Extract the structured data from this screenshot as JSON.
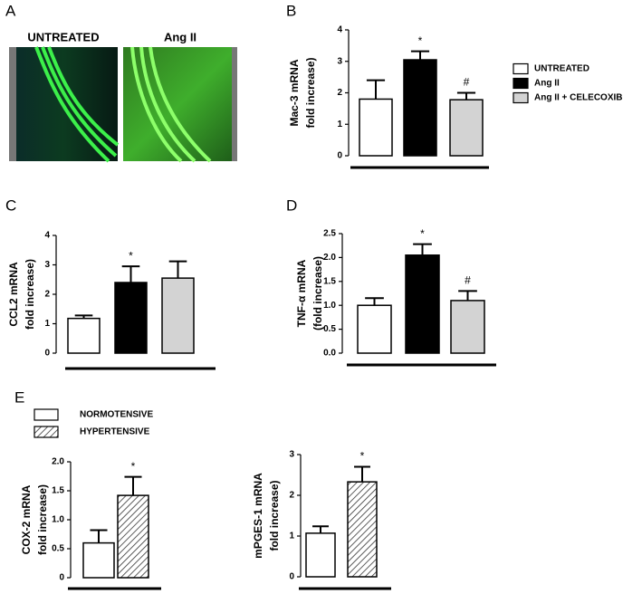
{
  "panels": [
    "A",
    "B",
    "C",
    "D",
    "E"
  ],
  "images": [
    {
      "label": "UNTREATED"
    },
    {
      "label": "Ang II"
    }
  ],
  "chart_data": [
    {
      "type": "bar",
      "y_label": [
        "Mac-3 mRNA",
        "fold increase)"
      ],
      "values": [
        1.8,
        3.05,
        1.78
      ],
      "errors": [
        0.6,
        0.27,
        0.22
      ],
      "colors": [
        "#ffffff",
        "#000000",
        "#d3d3d3"
      ],
      "hatched": [
        false,
        false,
        false
      ],
      "legend": [
        "UNTREATED",
        "Ang II",
        "Ang II + CELECOXIB"
      ],
      "markers": [
        null,
        "*",
        "#"
      ],
      "ylim": [
        0,
        4
      ],
      "yticks": [
        0,
        1,
        2,
        3,
        4
      ]
    },
    {
      "type": "bar",
      "y_label": [
        "CCL2 mRNA",
        "fold increase)"
      ],
      "values": [
        1.18,
        2.4,
        2.55
      ],
      "errors": [
        0.1,
        0.55,
        0.57
      ],
      "colors": [
        "#ffffff",
        "#000000",
        "#d3d3d3"
      ],
      "hatched": [
        false,
        false,
        false
      ],
      "markers": [
        null,
        "*",
        null
      ],
      "ylim": [
        0,
        4
      ],
      "yticks": [
        0,
        1,
        2,
        3,
        4
      ]
    },
    {
      "type": "bar",
      "y_label": [
        "TNF-α mRNA",
        "(fold increase)"
      ],
      "values": [
        1.0,
        2.05,
        1.1
      ],
      "errors": [
        0.15,
        0.23,
        0.2
      ],
      "colors": [
        "#ffffff",
        "#000000",
        "#d3d3d3"
      ],
      "hatched": [
        false,
        false,
        false
      ],
      "markers": [
        null,
        "*",
        "#"
      ],
      "ylim": [
        0,
        2.5
      ],
      "yticks": [
        {
          "value": 0,
          "label": "0.0"
        },
        0.5,
        {
          "value": 1,
          "label": "1.0"
        },
        1.5,
        {
          "value": 2,
          "label": "2.0"
        },
        2.5
      ]
    },
    {
      "type": "bar",
      "y_label": [
        "COX-2 mRNA",
        "fold increase)"
      ],
      "values": [
        0.6,
        1.42
      ],
      "errors": [
        0.22,
        0.32
      ],
      "colors": [
        "#ffffff",
        "#ffffff"
      ],
      "hatched": [
        false,
        true
      ],
      "legend": [
        "NORMOTENSIVE",
        "HYPERTENSIVE"
      ],
      "markers": [
        null,
        "*"
      ],
      "ylim": [
        0,
        2
      ],
      "yticks": [
        0,
        0.5,
        {
          "value": 1,
          "label": "1.0"
        },
        1.5,
        {
          "value": 2,
          "label": "2.0"
        }
      ]
    },
    {
      "type": "bar",
      "y_label": [
        "mPGES-1 mRNA",
        "fold increase)"
      ],
      "values": [
        1.07,
        2.33
      ],
      "errors": [
        0.17,
        0.37
      ],
      "colors": [
        "#ffffff",
        "#ffffff"
      ],
      "hatched": [
        false,
        true
      ],
      "markers": [
        null,
        "*"
      ],
      "ylim": [
        0,
        3
      ],
      "yticks": [
        0,
        1,
        2,
        3
      ]
    }
  ]
}
